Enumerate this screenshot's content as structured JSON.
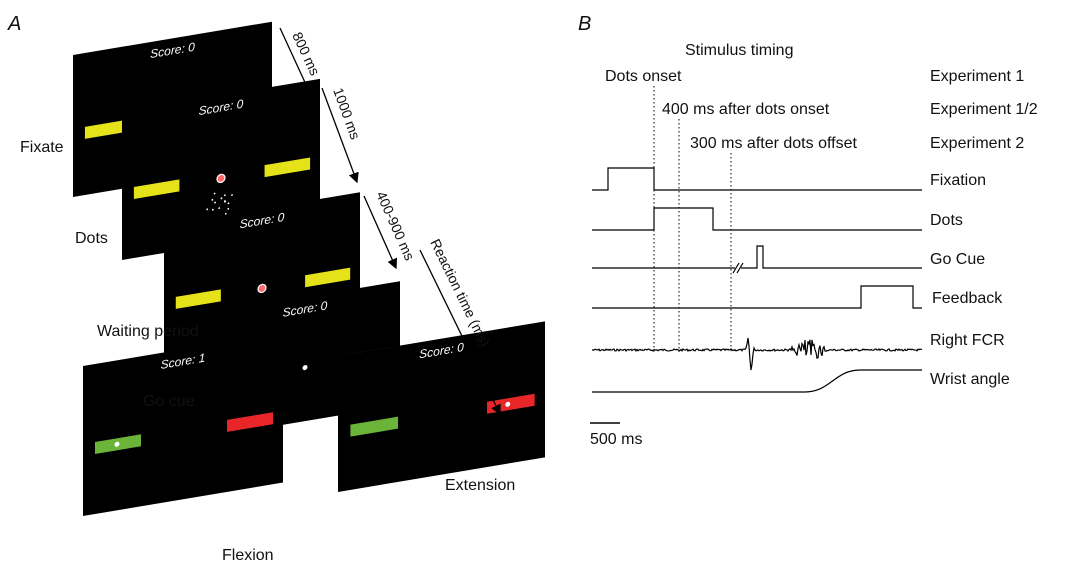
{
  "panel_a": {
    "label": "A",
    "screens": [
      {
        "score": "Score: 0",
        "label": "Fixate"
      },
      {
        "score": "Score: 0",
        "label": "Dots"
      },
      {
        "score": "Score: 0",
        "label": "Waiting period"
      },
      {
        "score": "Score: 0",
        "label": "Go cue"
      },
      {
        "score": "Score: 1",
        "label": "Flexion"
      },
      {
        "score": "Score: 0",
        "label": "Extension"
      }
    ],
    "intervals": [
      "800 ms",
      "1000 ms",
      "400-900 ms",
      "Reaction time (ms)"
    ]
  },
  "panel_b": {
    "label": "B",
    "title": "Stimulus timing",
    "events": [
      {
        "label": "Dots onset",
        "experiment": "Experiment 1"
      },
      {
        "label": "400 ms after dots onset",
        "experiment": "Experiment 1/2"
      },
      {
        "label": "300 ms after dots offset",
        "experiment": "Experiment 2"
      }
    ],
    "traces": [
      "Fixation",
      "Dots",
      "Go Cue",
      "Feedback",
      "Right FCR",
      "Wrist angle"
    ],
    "scale_bar": "500 ms"
  }
}
